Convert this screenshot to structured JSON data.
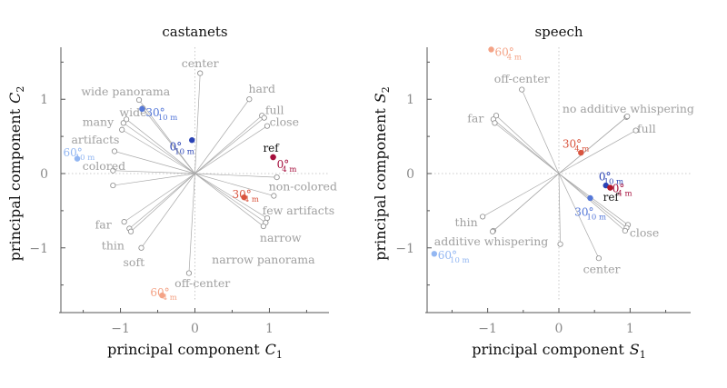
{
  "chart_data": [
    {
      "type": "scatter",
      "title": "castanets",
      "xlabel": "principal component",
      "xlabel_sym": "C",
      "xlabel_sub": "1",
      "ylabel": "principal component",
      "ylabel_sym": "C",
      "ylabel_sub": "2",
      "xlim": [
        -1.8,
        1.8
      ],
      "ylim": [
        -1.7,
        1.7
      ],
      "xticks": [
        -1,
        0,
        1
      ],
      "yticks": [
        -1,
        0,
        1
      ],
      "tick_labels_x": [
        "−1",
        "0",
        "1"
      ],
      "tick_labels_y": [
        "−1",
        "0",
        "1"
      ],
      "attributes": [
        {
          "label": "center",
          "points": [
            [
              0.07,
              1.35
            ]
          ],
          "label_pos": [
            0.07,
            1.48
          ],
          "anchor": "middle"
        },
        {
          "label": "hard",
          "points": [
            [
              0.73,
              1.0
            ]
          ],
          "label_pos": [
            0.9,
            1.14
          ],
          "anchor": "middle"
        },
        {
          "label": "full",
          "points": [
            [
              0.9,
              0.78
            ],
            [
              0.93,
              0.75
            ]
          ],
          "label_pos": [
            1.07,
            0.85
          ],
          "anchor": "middle"
        },
        {
          "label": "close",
          "points": [
            [
              0.97,
              0.64
            ]
          ],
          "label_pos": [
            1.2,
            0.69
          ],
          "anchor": "middle"
        },
        {
          "label": "wide panorama",
          "points": [
            [
              -0.75,
              0.99
            ]
          ],
          "label_pos": [
            -0.93,
            1.1
          ],
          "anchor": "middle"
        },
        {
          "label": "wide",
          "points": [
            [
              -0.7,
              0.88
            ]
          ],
          "label_pos": [
            -0.83,
            0.82
          ],
          "anchor": "middle"
        },
        {
          "label": "many",
          "points": [
            [
              -0.92,
              0.73
            ],
            [
              -0.96,
              0.68
            ]
          ],
          "label_pos": [
            -1.3,
            0.69
          ],
          "anchor": "middle"
        },
        {
          "label": "artifacts",
          "points": [
            [
              -0.98,
              0.59
            ]
          ],
          "label_pos": [
            -1.66,
            0.45
          ],
          "anchor": "start"
        },
        {
          "label": "colored",
          "points": [
            [
              -1.08,
              0.3
            ],
            [
              -1.1,
              0.04
            ]
          ],
          "label_pos": [
            -1.51,
            0.1
          ],
          "anchor": "start"
        },
        {
          "label": "non-colored",
          "points": [
            [
              1.1,
              -0.05
            ]
          ],
          "label_pos": [
            1.45,
            -0.18
          ],
          "anchor": "middle"
        },
        {
          "label": "few artifacts",
          "points": [
            [
              1.06,
              -0.3
            ]
          ],
          "label_pos": [
            1.39,
            -0.5
          ],
          "anchor": "middle"
        },
        {
          "label": "narrow",
          "points": [
            [
              0.97,
              -0.6
            ],
            [
              0.95,
              -0.66
            ]
          ],
          "label_pos": [
            1.15,
            -0.87
          ],
          "anchor": "middle"
        },
        {
          "label": "narrow panorama",
          "points": [
            [
              0.92,
              -0.71
            ]
          ],
          "label_pos": [
            0.92,
            -1.16
          ],
          "anchor": "middle"
        },
        {
          "label": "far",
          "points": [
            [
              -0.95,
              -0.65
            ]
          ],
          "label_pos": [
            -1.23,
            -0.69
          ],
          "anchor": "middle"
        },
        {
          "label": "thin",
          "points": [
            [
              -0.88,
              -0.74
            ],
            [
              -0.86,
              -0.78
            ]
          ],
          "label_pos": [
            -1.1,
            -0.97
          ],
          "anchor": "middle"
        },
        {
          "label": "soft",
          "points": [
            [
              -0.72,
              -1.0
            ]
          ],
          "label_pos": [
            -0.82,
            -1.2
          ],
          "anchor": "middle"
        },
        {
          "label": "off-center",
          "points": [
            [
              -0.08,
              -1.34
            ]
          ],
          "label_pos": [
            0.1,
            -1.48
          ],
          "anchor": "middle"
        },
        {
          "label": "",
          "points": [
            [
              -1.1,
              -0.16
            ]
          ],
          "label_pos": null,
          "anchor": "middle"
        }
      ],
      "conditions": [
        {
          "label": "ref",
          "sup": "",
          "sub": "",
          "point": [
            1.05,
            0.22
          ],
          "color": "#b2182b",
          "text_color": "#111111",
          "label_pos": [
            1.02,
            0.34
          ],
          "anchor": "middle"
        },
        {
          "label": "0°",
          "sup": "",
          "sub": "4 m",
          "point": [
            1.05,
            0.22
          ],
          "color": "#a50f3d",
          "text_color": "#a50f3d",
          "label_pos": [
            1.1,
            0.12
          ],
          "anchor": "start"
        },
        {
          "label": "0°",
          "sup": "",
          "sub": "10 m",
          "point": [
            -0.04,
            0.45
          ],
          "color": "#2a43b5",
          "text_color": "#2a43b5",
          "label_pos": [
            -0.34,
            0.36
          ],
          "anchor": "start"
        },
        {
          "label": "30°",
          "sup": "",
          "sub": "10 m",
          "point": [
            -0.71,
            0.87
          ],
          "color": "#5578d8",
          "text_color": "#5578d8",
          "label_pos": [
            -0.66,
            0.82
          ],
          "anchor": "start"
        },
        {
          "label": "30°",
          "sup": "",
          "sub": "4 m",
          "point": [
            0.66,
            -0.32
          ],
          "color": "#d9553f",
          "text_color": "#d9553f",
          "label_pos": [
            0.5,
            -0.28
          ],
          "anchor": "start"
        },
        {
          "label": "60°",
          "sup": "",
          "sub": "10 m",
          "point": [
            -1.58,
            0.2
          ],
          "color": "#93b7f2",
          "text_color": "#93b7f2",
          "label_pos": [
            -1.77,
            0.28
          ],
          "anchor": "start"
        },
        {
          "label": "60°",
          "sup": "",
          "sub": "4 m",
          "point": [
            -0.44,
            -1.64
          ],
          "color": "#f4a386",
          "text_color": "#f4a386",
          "label_pos": [
            -0.6,
            -1.6
          ],
          "anchor": "start"
        }
      ]
    },
    {
      "type": "scatter",
      "title": "speech",
      "xlabel": "principal component",
      "xlabel_sym": "S",
      "xlabel_sub": "1",
      "ylabel": "principal component",
      "ylabel_sym": "S",
      "ylabel_sub": "2",
      "xlim": [
        -1.85,
        1.85
      ],
      "ylim": [
        -1.7,
        1.7
      ],
      "xticks": [
        -1,
        0,
        1
      ],
      "yticks": [
        -1,
        0,
        1
      ],
      "tick_labels_x": [
        "−1",
        "0",
        "1"
      ],
      "tick_labels_y": [
        "−1",
        "0",
        "1"
      ],
      "attributes": [
        {
          "label": "off-center",
          "points": [
            [
              -0.52,
              1.13
            ]
          ],
          "label_pos": [
            -0.52,
            1.27
          ],
          "anchor": "middle"
        },
        {
          "label": "no additive whispering",
          "points": [
            [
              0.95,
              0.76
            ],
            [
              0.96,
              0.77
            ]
          ],
          "label_pos": [
            1.9,
            0.87
          ],
          "anchor": "end"
        },
        {
          "label": "full",
          "points": [
            [
              1.08,
              0.58
            ]
          ],
          "label_pos": [
            1.23,
            0.6
          ],
          "anchor": "middle"
        },
        {
          "label": "far",
          "points": [
            [
              -0.88,
              0.78
            ],
            [
              -0.92,
              0.73
            ],
            [
              -0.9,
              0.68
            ]
          ],
          "label_pos": [
            -1.17,
            0.74
          ],
          "anchor": "middle"
        },
        {
          "label": "thin",
          "points": [
            [
              -1.07,
              -0.58
            ]
          ],
          "label_pos": [
            -1.3,
            -0.66
          ],
          "anchor": "middle"
        },
        {
          "label": "additive whispering",
          "points": [
            [
              -0.92,
              -0.77
            ],
            [
              -0.93,
              -0.78
            ]
          ],
          "label_pos": [
            -0.95,
            -0.92
          ],
          "anchor": "middle"
        },
        {
          "label": "close",
          "points": [
            [
              0.97,
              -0.69
            ],
            [
              0.95,
              -0.73
            ],
            [
              0.93,
              -0.77
            ]
          ],
          "label_pos": [
            1.2,
            -0.8
          ],
          "anchor": "middle"
        },
        {
          "label": "center",
          "points": [
            [
              0.56,
              -1.14
            ]
          ],
          "label_pos": [
            0.6,
            -1.29
          ],
          "anchor": "middle"
        },
        {
          "label": "",
          "points": [
            [
              0.02,
              -0.95
            ]
          ],
          "label_pos": null,
          "anchor": "middle"
        }
      ],
      "conditions": [
        {
          "label": "60°",
          "sup": "",
          "sub": "4 m",
          "point": [
            -0.95,
            1.67
          ],
          "color": "#f4a386",
          "text_color": "#f4a386",
          "label_pos": [
            -0.9,
            1.63
          ],
          "anchor": "start"
        },
        {
          "label": "30°",
          "sup": "",
          "sub": "4 m",
          "point": [
            0.31,
            0.28
          ],
          "color": "#d9553f",
          "text_color": "#d9553f",
          "label_pos": [
            0.05,
            0.4
          ],
          "anchor": "start"
        },
        {
          "label": "0°",
          "sup": "",
          "sub": "10 m",
          "point": [
            0.66,
            -0.16
          ],
          "color": "#2a43b5",
          "text_color": "#2a43b5",
          "label_pos": [
            0.56,
            -0.04
          ],
          "anchor": "start"
        },
        {
          "label": "0°",
          "sup": "",
          "sub": "4 m",
          "point": [
            0.72,
            -0.19
          ],
          "color": "#a50f3d",
          "text_color": "#a50f3d",
          "label_pos": [
            0.75,
            -0.2
          ],
          "anchor": "start"
        },
        {
          "label": "ref",
          "sup": "",
          "sub": "",
          "point": [
            0.72,
            -0.19
          ],
          "color": "#b2182b",
          "text_color": "#111111",
          "label_pos": [
            0.62,
            -0.32
          ],
          "anchor": "start"
        },
        {
          "label": "30°",
          "sup": "",
          "sub": "10 m",
          "point": [
            0.44,
            -0.33
          ],
          "color": "#5578d8",
          "text_color": "#5578d8",
          "label_pos": [
            0.22,
            -0.52
          ],
          "anchor": "start"
        },
        {
          "label": "60°",
          "sup": "",
          "sub": "10 m",
          "point": [
            -1.75,
            -1.08
          ],
          "color": "#93b7f2",
          "text_color": "#93b7f2",
          "label_pos": [
            -1.7,
            -1.1
          ],
          "anchor": "start"
        }
      ]
    }
  ]
}
